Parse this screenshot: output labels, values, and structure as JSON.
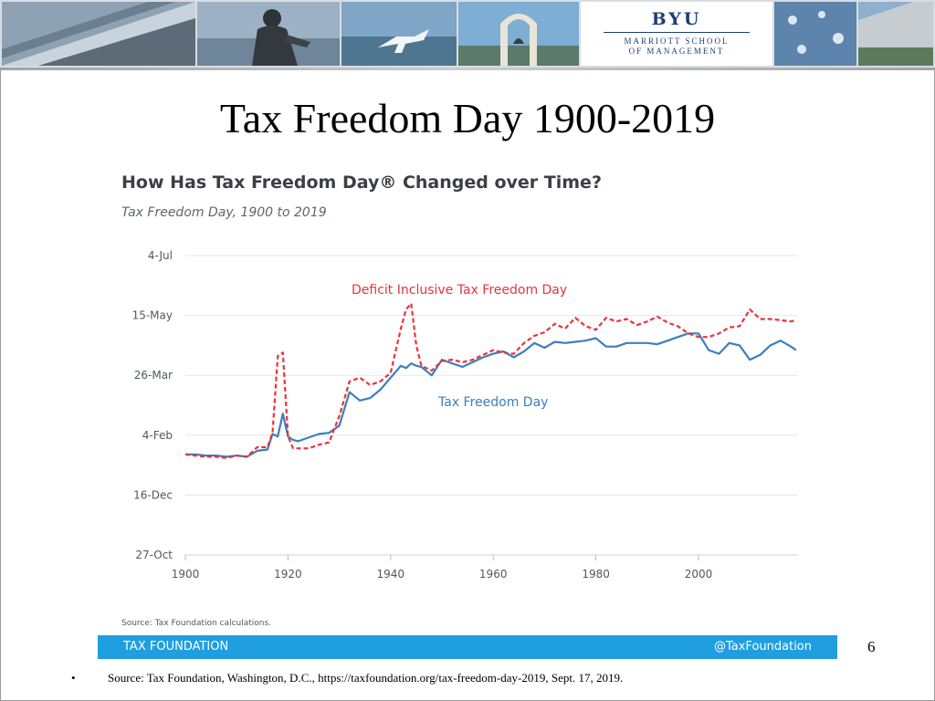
{
  "slide": {
    "title": "Tax Freedom Day 1900-2019",
    "page_number": "6",
    "footnote_bullet": "•",
    "footnote": "Source:  Tax Foundation, Washington, D.C., https://taxfoundation.org/tax-freedom-day-2019, Sept. 17, 2019."
  },
  "header": {
    "logo_word": "BYU",
    "logo_line1": "MARRIOTT SCHOOL",
    "logo_line2": "OF MANAGEMENT",
    "photos": [
      "building-photo",
      "statue-photo",
      "y-mountain-photo",
      "bell-arch-photo",
      "water-photo",
      "campus-building-photo"
    ]
  },
  "chart_card": {
    "source": "Source: Tax Foundation calculations.",
    "footer_left": "TAX FOUNDATION",
    "footer_right": "@TaxFoundation",
    "footer_color": "#1f9ee0"
  },
  "chart_data": {
    "type": "line",
    "title": "How Has Tax Freedom Day® Changed over Time?",
    "subtitle": "Tax Freedom Day, 1900 to 2019",
    "x": [
      1900,
      1902,
      1904,
      1906,
      1908,
      1910,
      1912,
      1914,
      1916,
      1917,
      1918,
      1919,
      1920,
      1921,
      1922,
      1924,
      1926,
      1928,
      1930,
      1932,
      1934,
      1936,
      1938,
      1940,
      1942,
      1943,
      1944,
      1945,
      1946,
      1948,
      1950,
      1952,
      1954,
      1956,
      1958,
      1960,
      1962,
      1964,
      1966,
      1968,
      1970,
      1972,
      1974,
      1976,
      1978,
      1980,
      1982,
      1984,
      1986,
      1988,
      1990,
      1992,
      1994,
      1996,
      1998,
      2000,
      2002,
      2004,
      2006,
      2008,
      2010,
      2012,
      2014,
      2016,
      2018,
      2019
    ],
    "y_ticks": [
      "27-Oct",
      "16-Dec",
      "4-Feb",
      "26-Mar",
      "15-May",
      "4-Jul"
    ],
    "x_ticks": [
      1900,
      1920,
      1940,
      1960,
      1980,
      2000
    ],
    "series": [
      {
        "name": "Tax Freedom Day",
        "label": "Tax Freedom Day",
        "color": "#3d7ebf",
        "dash": false,
        "values": [
          "Jan 19",
          "Jan 19",
          "Jan 18",
          "Jan 18",
          "Jan 17",
          "Jan 18",
          "Jan 17",
          "Jan 22",
          "Jan 23",
          "Feb 5",
          "Feb 3",
          "Feb 22",
          "Feb 3",
          "Jan 31",
          "Jan 30",
          "Feb 2",
          "Feb 5",
          "Feb 6",
          "Feb 12",
          "Mar 12",
          "Mar 5",
          "Mar 7",
          "Mar 14",
          "Mar 24",
          "Apr 3",
          "Apr 1",
          "Apr 5",
          "Apr 3",
          "Apr 2",
          "Mar 26",
          "Apr 8",
          "Apr 5",
          "Apr 2",
          "Apr 6",
          "Apr 10",
          "Apr 13",
          "Apr 15",
          "Apr 10",
          "Apr 15",
          "Apr 22",
          "Apr 18",
          "Apr 23",
          "Apr 22",
          "Apr 23",
          "Apr 24",
          "Apr 26",
          "Apr 19",
          "Apr 19",
          "Apr 22",
          "Apr 22",
          "Apr 22",
          "Apr 21",
          "Apr 24",
          "Apr 27",
          "Apr 30",
          "Apr 30",
          "Apr 16",
          "Apr 13",
          "Apr 22",
          "Apr 20",
          "Apr 8",
          "Apr 12",
          "Apr 20",
          "Apr 24",
          "Apr 19",
          "Apr 16"
        ]
      },
      {
        "name": "Deficit Inclusive Tax Freedom Day",
        "label": "Deficit Inclusive Tax Freedom Day",
        "color": "#e8343a",
        "dash": true,
        "values": [
          "Jan 19",
          "Jan 18",
          "Jan 17",
          "Jan 17",
          "Jan 16",
          "Jan 18",
          "Jan 17",
          "Jan 25",
          "Jan 25",
          "Feb 6",
          "Apr 11",
          "Apr 14",
          "Feb 3",
          "Jan 24",
          "Jan 24",
          "Jan 24",
          "Jan 27",
          "Jan 29",
          "Feb 20",
          "Mar 21",
          "Mar 24",
          "Mar 18",
          "Mar 21",
          "Mar 28",
          "May 4",
          "May 20",
          "May 25",
          "Apr 20",
          "Apr 3",
          "Mar 30",
          "Apr 7",
          "Apr 8",
          "Apr 6",
          "Apr 8",
          "Apr 12",
          "Apr 16",
          "Apr 14",
          "Apr 13",
          "Apr 22",
          "Apr 28",
          "May 1",
          "May 8",
          "May 4",
          "May 13",
          "May 6",
          "May 3",
          "May 13",
          "May 10",
          "May 12",
          "May 7",
          "May 10",
          "May 14",
          "May 9",
          "May 6",
          "Apr 30",
          "Apr 27",
          "Apr 27",
          "Apr 30",
          "May 5",
          "May 6",
          "May 20",
          "May 12",
          "May 12",
          "May 11",
          "May 10",
          "May 11"
        ]
      }
    ],
    "annotations": [
      {
        "text": "Deficit Inclusive Tax Freedom Day",
        "color": "#e8343a"
      },
      {
        "text": "Tax Freedom Day",
        "color": "#3d7ebf"
      }
    ],
    "grid": true
  }
}
